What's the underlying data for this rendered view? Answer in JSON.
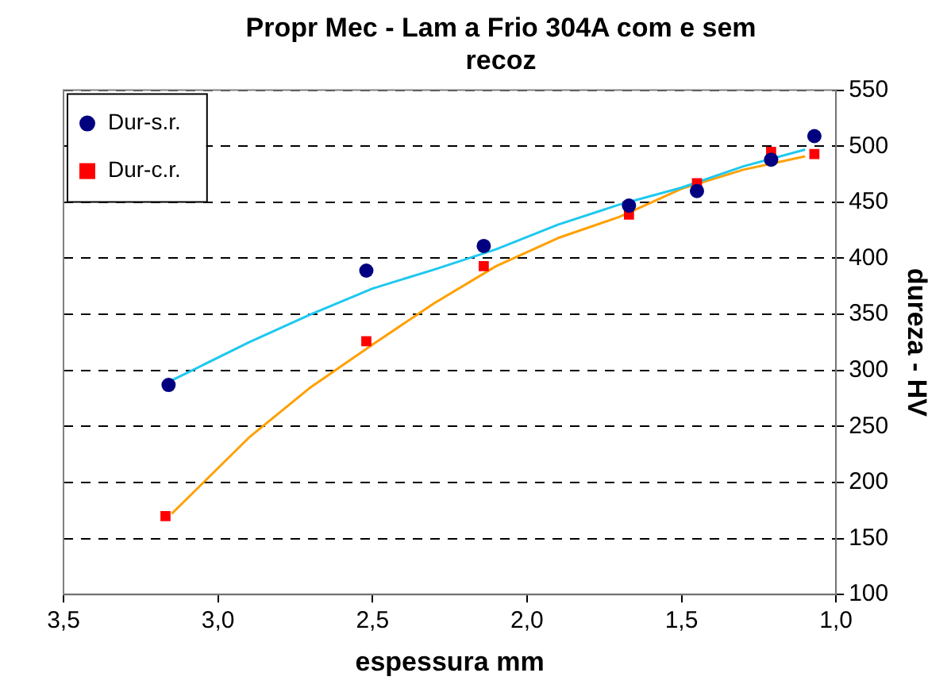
{
  "chart_data": {
    "type": "scatter",
    "title": "Propr Mec - Lam a Frio 304A com e sem recoz",
    "xlabel": "espessura mm",
    "ylabel": "dureza - HV",
    "xlim": [
      3.5,
      1.0
    ],
    "xticks": [
      {
        "value": 3.5,
        "label": "3,5"
      },
      {
        "value": 3.0,
        "label": "3,0"
      },
      {
        "value": 2.5,
        "label": "2,5"
      },
      {
        "value": 2.0,
        "label": "2,0"
      },
      {
        "value": 1.5,
        "label": "1,5"
      },
      {
        "value": 1.0,
        "label": "1,0"
      }
    ],
    "ylim": [
      100,
      550
    ],
    "yticks": [
      100,
      150,
      200,
      250,
      300,
      350,
      400,
      450,
      500,
      550
    ],
    "grid": "y",
    "legend": "top left",
    "series": [
      {
        "name": "Dur-s.r.",
        "color": "#000080",
        "marker": "circle",
        "x": [
          3.16,
          2.52,
          2.14,
          1.67,
          1.45,
          1.21,
          1.07
        ],
        "values": [
          287,
          389,
          411,
          447,
          460,
          488,
          509
        ]
      },
      {
        "name": "Dur-c.r.",
        "color": "#ff0000",
        "marker": "square",
        "x": [
          3.17,
          2.52,
          2.14,
          1.67,
          1.45,
          1.21,
          1.07
        ],
        "values": [
          170,
          326,
          393,
          439,
          467,
          495,
          493
        ]
      },
      {
        "type": "line",
        "color": "#1ec8f0",
        "marker": "none",
        "x": [
          3.15,
          2.9,
          2.7,
          2.5,
          2.3,
          2.1,
          1.9,
          1.7,
          1.5,
          1.3,
          1.1
        ],
        "values": [
          291,
          325,
          350,
          373,
          390,
          408,
          430,
          448,
          463,
          482,
          497
        ]
      },
      {
        "type": "line",
        "color": "#ffa000",
        "marker": "none",
        "x": [
          3.15,
          2.9,
          2.7,
          2.5,
          2.3,
          2.1,
          1.9,
          1.7,
          1.5,
          1.3,
          1.1
        ],
        "values": [
          172,
          240,
          285,
          323,
          360,
          393,
          418,
          437,
          462,
          479,
          491
        ]
      }
    ]
  }
}
